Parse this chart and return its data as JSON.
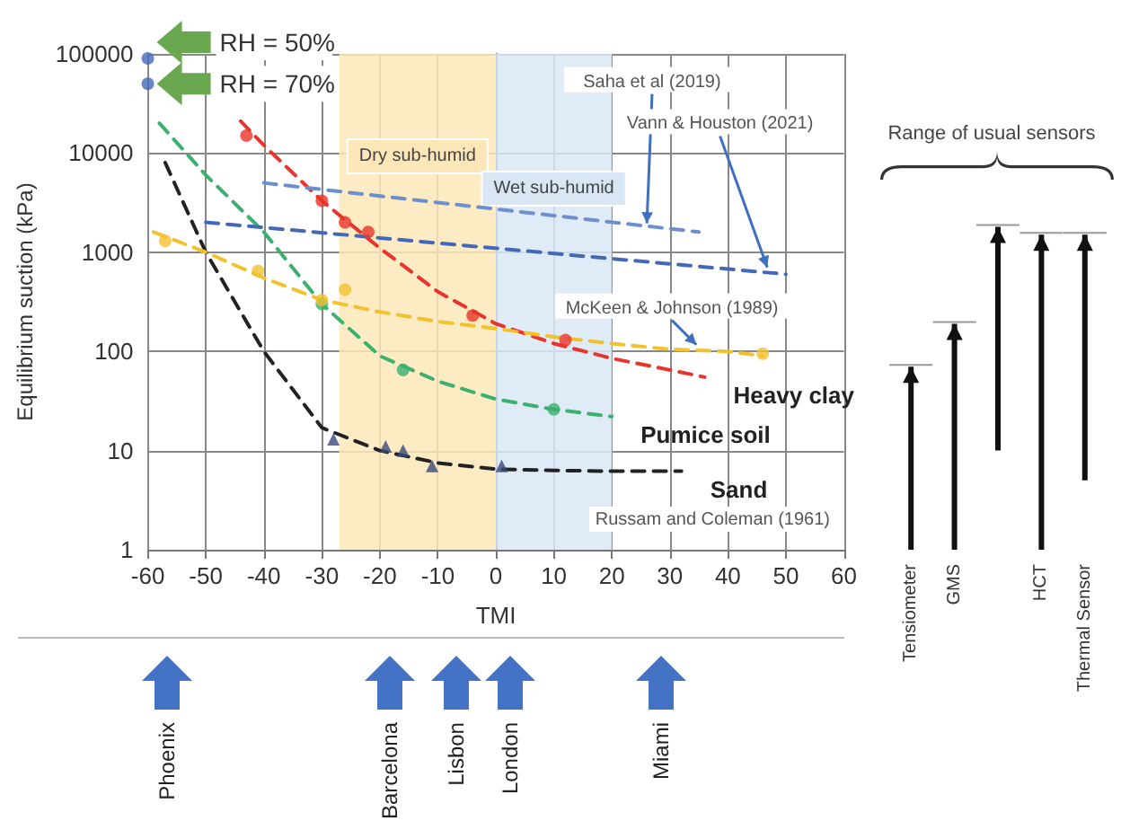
{
  "chart_data": [
    {
      "type": "line",
      "xlabel": "TMI",
      "ylabel": "Equilibrium suction (kPa)",
      "xlim": [
        -60,
        60
      ],
      "xticks": [
        -60,
        -50,
        -40,
        -30,
        -20,
        -10,
        0,
        10,
        20,
        30,
        40,
        50,
        60
      ],
      "ylim": [
        1,
        100000
      ],
      "yticks": [
        1,
        10,
        100,
        1000,
        10000,
        100000
      ],
      "log": "y",
      "grid": true,
      "legend": false,
      "line_style": "dashed",
      "bands": [
        {
          "axis": "x",
          "from": -27,
          "to": 0,
          "label": "Dry sub-humid",
          "color": "#fde7b8"
        },
        {
          "axis": "x",
          "from": 0,
          "to": 20,
          "label": "Wet sub-humid",
          "color": "#d9e7f5"
        }
      ],
      "series": [
        {
          "name": "Heavy clay",
          "type": "line",
          "color": "#e8352b",
          "x": [
            -44,
            -40,
            -30,
            -20,
            -10,
            0,
            10,
            20,
            30,
            36
          ],
          "values": [
            21000,
            12000,
            3300,
            1100,
            400,
            190,
            120,
            85,
            65,
            55
          ]
        },
        {
          "type": "scatter",
          "marker": "circle",
          "color": "#e8352b",
          "x": [
            -43,
            -30,
            -26,
            -22,
            -4,
            12
          ],
          "values": [
            15000,
            3300,
            2000,
            1600,
            230,
            130
          ]
        },
        {
          "name": "Pumice soil",
          "type": "line",
          "color": "#3cb06e",
          "x": [
            -58,
            -50,
            -40,
            -30,
            -20,
            -10,
            0,
            10,
            20
          ],
          "values": [
            20000,
            6000,
            1600,
            300,
            90,
            50,
            33,
            26,
            22
          ]
        },
        {
          "type": "scatter",
          "marker": "circle",
          "color": "#3cb06e",
          "x": [
            -30,
            -16,
            10
          ],
          "values": [
            300,
            65,
            26
          ]
        },
        {
          "name": "Sand",
          "type": "line",
          "color": "#222222",
          "x": [
            -57,
            -50,
            -40,
            -30,
            -20,
            -10,
            0,
            10,
            20,
            32
          ],
          "values": [
            8000,
            1000,
            100,
            17,
            10,
            7.5,
            6.5,
            6.3,
            6.2,
            6.2
          ]
        },
        {
          "type": "scatter",
          "marker": "triangle",
          "color": "#3a4a7a",
          "x": [
            -28,
            -19,
            -16,
            -11,
            1
          ],
          "values": [
            13,
            11,
            10,
            7,
            7
          ]
        },
        {
          "type": "line",
          "color": "#f2c12e",
          "x": [
            -59,
            -50,
            -40,
            -30,
            -20,
            -10,
            0,
            10,
            20,
            30,
            40,
            46
          ],
          "values": [
            1600,
            1000,
            550,
            330,
            250,
            200,
            170,
            140,
            120,
            105,
            100,
            90
          ]
        },
        {
          "type": "scatter",
          "marker": "circle",
          "color": "#f2c12e",
          "x": [
            -57,
            -41,
            -30,
            -26,
            46
          ],
          "values": [
            1300,
            650,
            330,
            420,
            95
          ]
        },
        {
          "type": "line",
          "color": "#6d8fcf",
          "x": [
            -40,
            35
          ],
          "values": [
            5000,
            1600
          ]
        },
        {
          "type": "line",
          "color": "#4468b8",
          "x": [
            -50,
            50
          ],
          "values": [
            2000,
            600
          ]
        },
        {
          "type": "scatter",
          "marker": "circle",
          "color": "#4468b8",
          "x": [
            -60,
            -60
          ],
          "values": [
            90000,
            50000
          ]
        }
      ],
      "annotations": [
        {
          "text": "RH = 50%",
          "x": -60,
          "y": 90000
        },
        {
          "text": "RH = 70%",
          "x": -60,
          "y": 50000
        },
        {
          "text": "Saha et al (2019)",
          "x": 26,
          "y": 1800
        },
        {
          "text": "Vann & Houston (2021)",
          "x": 47,
          "y": 650
        },
        {
          "text": "McKeen & Johnson (1989)",
          "x": 35,
          "y": 110
        },
        "Russam and Coleman (1961)",
        "Phoenix",
        "Barcelona",
        "Lisbon",
        "London",
        "Miami"
      ]
    },
    {
      "type": "bar",
      "title": "Range of usual sensors",
      "categories": [
        "Tensiometer",
        "GMS",
        null,
        "HCT",
        "Thermal Sensor"
      ],
      "base": [
        1,
        1,
        10,
        1,
        5
      ],
      "values": [
        69,
        189,
        1790,
        1499,
        1495
      ],
      "color": "#111111",
      "ylim": [
        1,
        100000
      ],
      "log": "y",
      "tick_labels": "x"
    }
  ]
}
